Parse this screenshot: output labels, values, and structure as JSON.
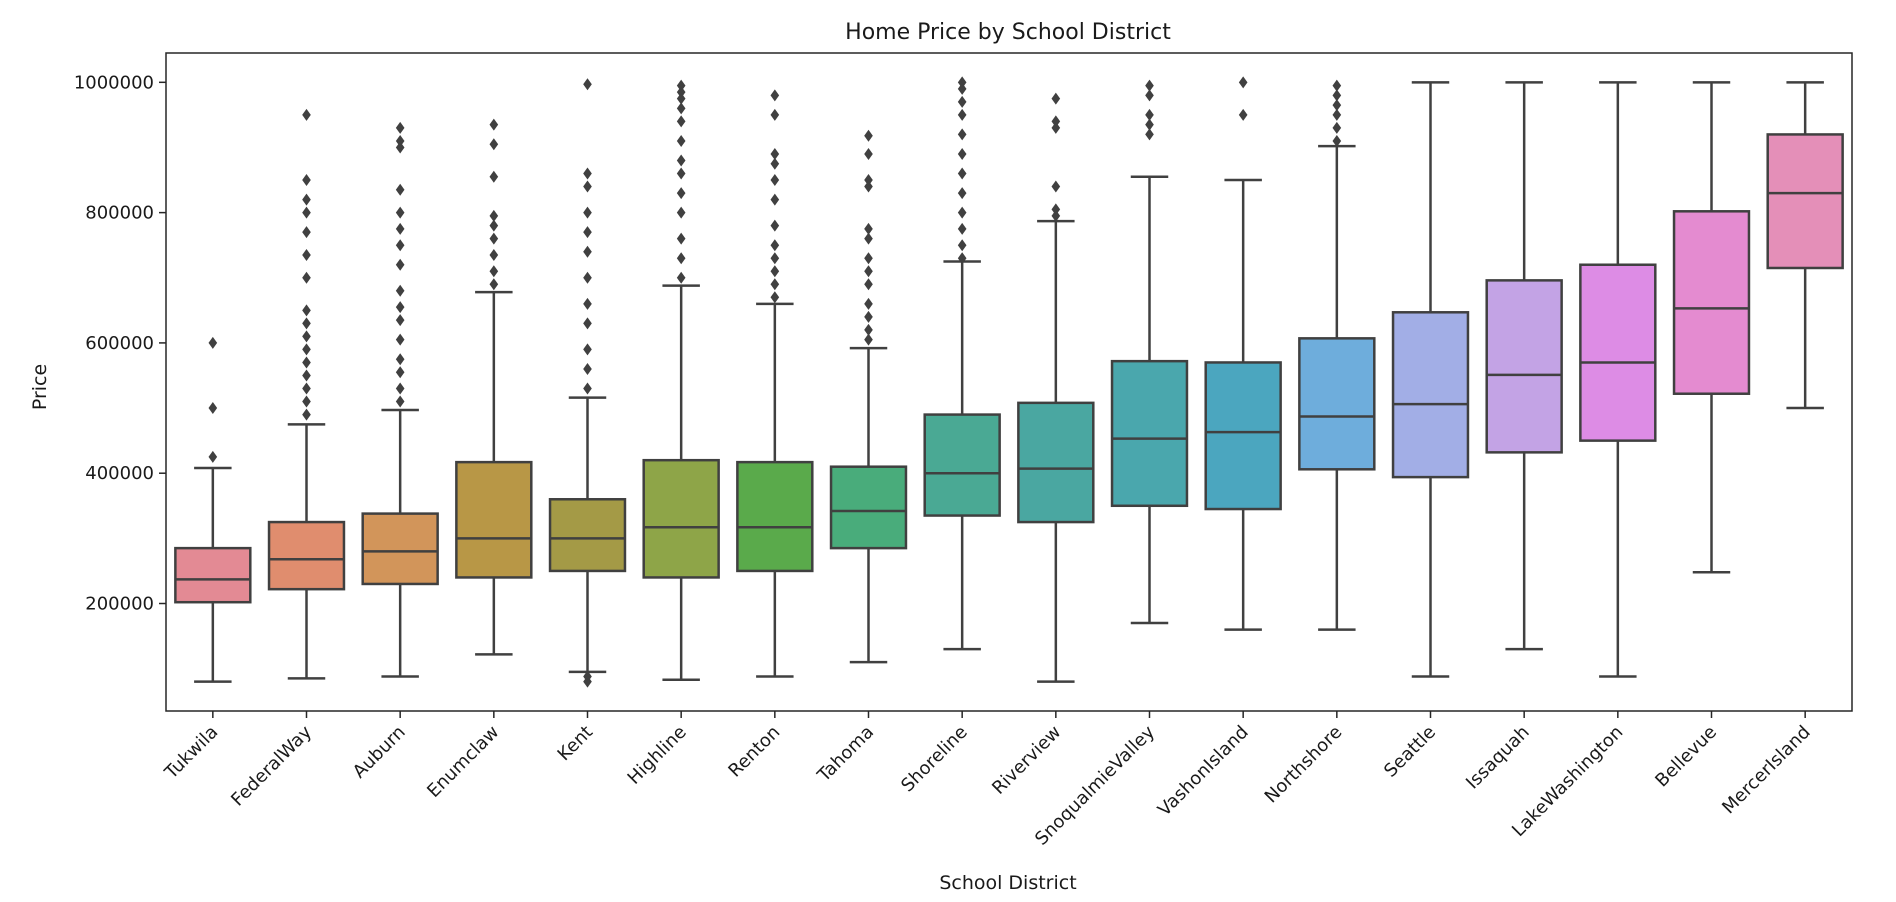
{
  "chart_data": {
    "type": "box",
    "title": "Home Price by School District",
    "xlabel": "School District",
    "ylabel": "Price",
    "ylim": [
      35000,
      1045000
    ],
    "yticks": [
      200000,
      400000,
      600000,
      800000,
      1000000
    ],
    "ytick_labels": [
      "200000",
      "400000",
      "600000",
      "800000",
      "1000000"
    ],
    "grid": false,
    "categories": [
      "Tukwila",
      "FederalWay",
      "Auburn",
      "Enumclaw",
      "Kent",
      "Highline",
      "Renton",
      "Tahoma",
      "Shoreline",
      "Riverview",
      "SnoqualmieValley",
      "VashonIsland",
      "Northshore",
      "Seattle",
      "Issaquah",
      "LakeWashington",
      "Bellevue",
      "MercerIsland"
    ],
    "boxes": [
      {
        "category": "Tukwila",
        "color": "#e38a94",
        "whisker_low": 80000,
        "q1": 202000,
        "median": 237000,
        "q3": 285000,
        "whisker_high": 408000,
        "outliers": [
          425000,
          500000,
          600000
        ]
      },
      {
        "category": "FederalWay",
        "color": "#e08d6e",
        "whisker_low": 85000,
        "q1": 222000,
        "median": 268000,
        "q3": 325000,
        "whisker_high": 475000,
        "outliers": [
          490000,
          510000,
          530000,
          550000,
          570000,
          590000,
          610000,
          630000,
          650000,
          700000,
          735000,
          770000,
          800000,
          820000,
          850000,
          950000
        ]
      },
      {
        "category": "Auburn",
        "color": "#d2955a",
        "whisker_low": 88000,
        "q1": 230000,
        "median": 280000,
        "q3": 338000,
        "whisker_high": 497000,
        "outliers": [
          510000,
          530000,
          555000,
          575000,
          605000,
          635000,
          655000,
          680000,
          720000,
          750000,
          775000,
          800000,
          835000,
          900000,
          910000,
          930000
        ]
      },
      {
        "category": "Enumclaw",
        "color": "#b89746",
        "whisker_low": 122000,
        "q1": 240000,
        "median": 300000,
        "q3": 417000,
        "whisker_high": 678000,
        "outliers": [
          690000,
          710000,
          735000,
          760000,
          780000,
          795000,
          855000,
          905000,
          935000
        ]
      },
      {
        "category": "Kent",
        "color": "#a49a46",
        "whisker_low": 95000,
        "q1": 250000,
        "median": 300000,
        "q3": 360000,
        "whisker_high": 516000,
        "outliers": [
          80000,
          88000,
          530000,
          560000,
          590000,
          630000,
          660000,
          700000,
          740000,
          770000,
          800000,
          840000,
          860000,
          997000
        ]
      },
      {
        "category": "Highline",
        "color": "#8ea548",
        "whisker_low": 83000,
        "q1": 240000,
        "median": 317000,
        "q3": 420000,
        "whisker_high": 688000,
        "outliers": [
          700000,
          730000,
          760000,
          800000,
          830000,
          860000,
          880000,
          910000,
          940000,
          960000,
          975000,
          985000,
          995000
        ]
      },
      {
        "category": "Renton",
        "color": "#5aaa4b",
        "whisker_low": 88000,
        "q1": 250000,
        "median": 317000,
        "q3": 417000,
        "whisker_high": 660000,
        "outliers": [
          670000,
          690000,
          710000,
          730000,
          750000,
          780000,
          820000,
          850000,
          875000,
          890000,
          950000,
          980000
        ]
      },
      {
        "category": "Tahoma",
        "color": "#49ac7b",
        "whisker_low": 110000,
        "q1": 285000,
        "median": 342000,
        "q3": 410000,
        "whisker_high": 592000,
        "outliers": [
          605000,
          620000,
          640000,
          660000,
          690000,
          710000,
          730000,
          760000,
          775000,
          840000,
          850000,
          890000,
          918000
        ]
      },
      {
        "category": "Shoreline",
        "color": "#4aa994",
        "whisker_low": 130000,
        "q1": 335000,
        "median": 400000,
        "q3": 490000,
        "whisker_high": 725000,
        "outliers": [
          730000,
          750000,
          775000,
          800000,
          830000,
          860000,
          890000,
          920000,
          950000,
          970000,
          990000,
          1000000
        ]
      },
      {
        "category": "Riverview",
        "color": "#4aa7a1",
        "whisker_low": 80000,
        "q1": 325000,
        "median": 407000,
        "q3": 508000,
        "whisker_high": 787000,
        "outliers": [
          795000,
          805000,
          840000,
          930000,
          940000,
          975000
        ]
      },
      {
        "category": "SnoqualmieValley",
        "color": "#4aa7ad",
        "whisker_low": 170000,
        "q1": 350000,
        "median": 453000,
        "q3": 572000,
        "whisker_high": 855000,
        "outliers": [
          920000,
          935000,
          950000,
          980000,
          995000
        ]
      },
      {
        "category": "VashonIsland",
        "color": "#4ba6bf",
        "whisker_low": 160000,
        "q1": 345000,
        "median": 463000,
        "q3": 570000,
        "whisker_high": 850000,
        "outliers": [
          950000,
          1000000
        ]
      },
      {
        "category": "Northshore",
        "color": "#6eaddc",
        "whisker_low": 160000,
        "q1": 406000,
        "median": 487000,
        "q3": 607000,
        "whisker_high": 902000,
        "outliers": [
          910000,
          930000,
          950000,
          965000,
          980000,
          995000
        ]
      },
      {
        "category": "Seattle",
        "color": "#a2aee6",
        "whisker_low": 88000,
        "q1": 394000,
        "median": 506000,
        "q3": 647000,
        "whisker_high": 1000000,
        "outliers": []
      },
      {
        "category": "Issaquah",
        "color": "#c3a3e5",
        "whisker_low": 130000,
        "q1": 432000,
        "median": 551000,
        "q3": 696000,
        "whisker_high": 1000000,
        "outliers": []
      },
      {
        "category": "LakeWashington",
        "color": "#dd8ce5",
        "whisker_low": 88000,
        "q1": 450000,
        "median": 570000,
        "q3": 720000,
        "whisker_high": 1000000,
        "outliers": []
      },
      {
        "category": "Bellevue",
        "color": "#e48bd0",
        "whisker_low": 248000,
        "q1": 522000,
        "median": 653000,
        "q3": 802000,
        "whisker_high": 1000000,
        "outliers": []
      },
      {
        "category": "MercerIsland",
        "color": "#e48fb8",
        "whisker_low": 500000,
        "q1": 715000,
        "median": 830000,
        "q3": 920000,
        "whisker_high": 1000000,
        "outliers": []
      }
    ]
  },
  "style": {
    "line_color": "#404040",
    "frame_color": "#262626"
  }
}
